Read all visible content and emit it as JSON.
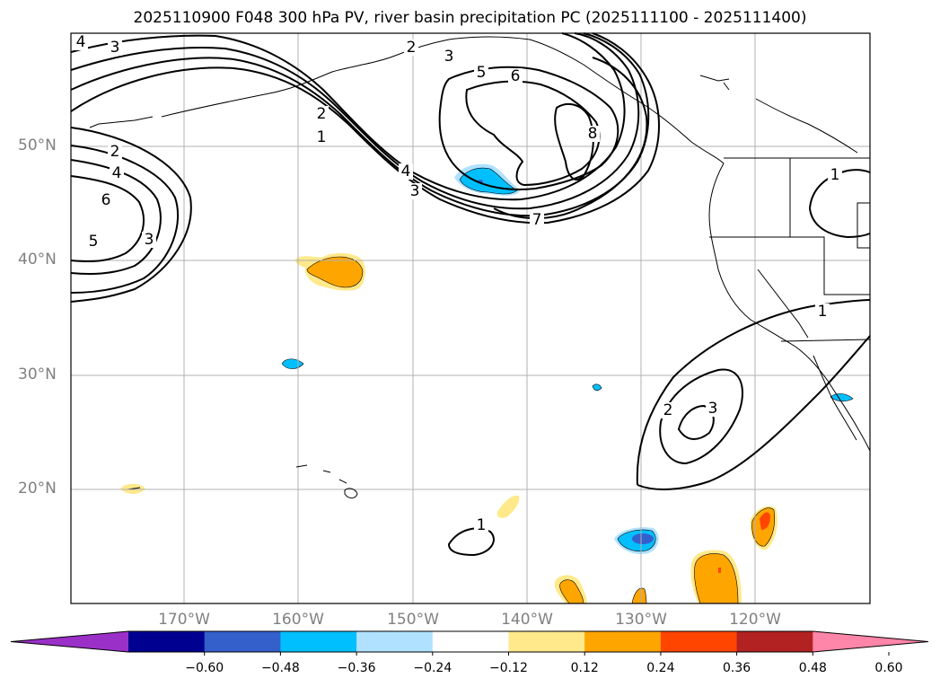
{
  "title": "2025110900 F048 300 hPa PV, river basin precipitation PC (2025111100 - 2025111400)",
  "lat_labels": [
    "50°N",
    "40°N",
    "30°N",
    "20°N"
  ],
  "lon_labels": [
    "170°W",
    "160°W",
    "150°W",
    "140°W",
    "130°W",
    "120°W"
  ],
  "contour_labels": [
    "4",
    "3",
    "2",
    "3",
    "5",
    "6",
    "2",
    "1",
    "2",
    "4",
    "6",
    "5",
    "3",
    "4",
    "3",
    "7",
    "8",
    "1",
    "1",
    "2",
    "3",
    "1"
  ],
  "colorbar": {
    "labels": [
      "−0.60",
      "−0.48",
      "−0.36",
      "−0.24",
      "−0.12",
      "0.12",
      "0.24",
      "0.36",
      "0.48",
      "0.60"
    ],
    "colors": [
      "#9b30c8",
      "#000090",
      "#3460cc",
      "#00bfff",
      "#b0e2ff",
      "#ffffff",
      "#ffe98a",
      "#ffa500",
      "#ff4500",
      "#b22222",
      "#ff86a8"
    ]
  }
}
